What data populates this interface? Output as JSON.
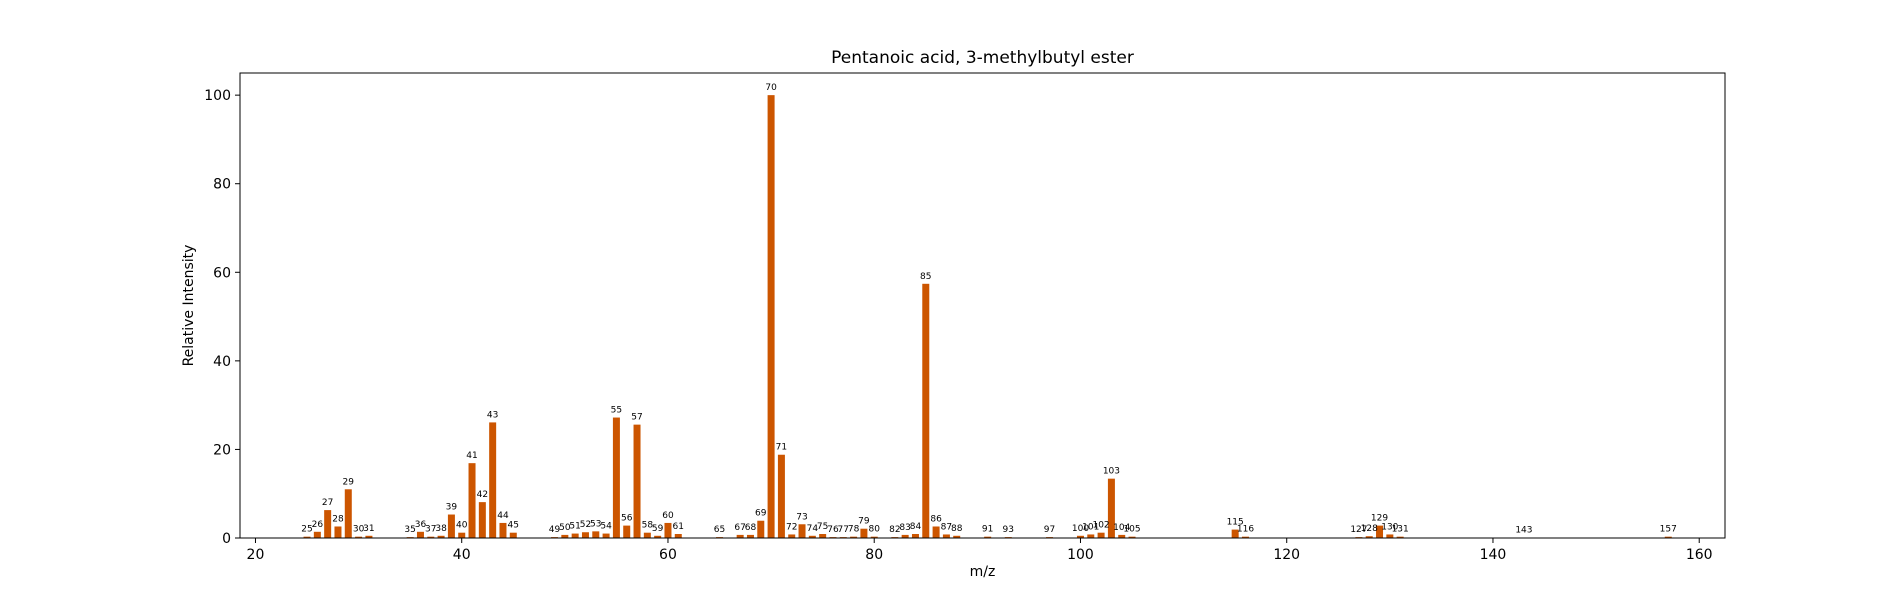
{
  "chart_data": {
    "type": "bar",
    "title": "Pentanoic acid, 3-methylbutyl ester",
    "xlabel": "m/z",
    "ylabel": "Relative Intensity",
    "xlim": [
      18.5,
      162.5
    ],
    "ylim": [
      0,
      105
    ],
    "xticks": [
      20,
      40,
      60,
      80,
      100,
      120,
      140,
      160
    ],
    "yticks": [
      0,
      20,
      40,
      60,
      80,
      100
    ],
    "bar_color": "#cc5500",
    "grid": false,
    "peaks": [
      {
        "mz": 25,
        "intensity": 0.3,
        "label": "25"
      },
      {
        "mz": 26,
        "intensity": 1.4,
        "label": "26"
      },
      {
        "mz": 27,
        "intensity": 6.3,
        "label": "27"
      },
      {
        "mz": 28,
        "intensity": 2.6,
        "label": "28"
      },
      {
        "mz": 29,
        "intensity": 11.0,
        "label": "29"
      },
      {
        "mz": 30,
        "intensity": 0.3,
        "label": "30"
      },
      {
        "mz": 31,
        "intensity": 0.5,
        "label": "31"
      },
      {
        "mz": 35,
        "intensity": 0.2,
        "label": "35"
      },
      {
        "mz": 36,
        "intensity": 1.4,
        "label": "36"
      },
      {
        "mz": 37,
        "intensity": 0.3,
        "label": "37"
      },
      {
        "mz": 38,
        "intensity": 0.5,
        "label": "38"
      },
      {
        "mz": 39,
        "intensity": 5.3,
        "label": "39"
      },
      {
        "mz": 40,
        "intensity": 1.2,
        "label": "40"
      },
      {
        "mz": 41,
        "intensity": 16.9,
        "label": "41"
      },
      {
        "mz": 42,
        "intensity": 8.1,
        "label": "42"
      },
      {
        "mz": 43,
        "intensity": 26.1,
        "label": "43"
      },
      {
        "mz": 44,
        "intensity": 3.4,
        "label": "44"
      },
      {
        "mz": 45,
        "intensity": 1.2,
        "label": "45"
      },
      {
        "mz": 49,
        "intensity": 0.2,
        "label": "49"
      },
      {
        "mz": 50,
        "intensity": 0.7,
        "label": "50"
      },
      {
        "mz": 51,
        "intensity": 1.0,
        "label": "51"
      },
      {
        "mz": 52,
        "intensity": 1.3,
        "label": "52"
      },
      {
        "mz": 53,
        "intensity": 1.5,
        "label": "53"
      },
      {
        "mz": 54,
        "intensity": 1.0,
        "label": "54"
      },
      {
        "mz": 55,
        "intensity": 27.2,
        "label": "55"
      },
      {
        "mz": 56,
        "intensity": 2.8,
        "label": "56"
      },
      {
        "mz": 57,
        "intensity": 25.6,
        "label": "57"
      },
      {
        "mz": 58,
        "intensity": 1.2,
        "label": "58"
      },
      {
        "mz": 59,
        "intensity": 0.5,
        "label": "59"
      },
      {
        "mz": 60,
        "intensity": 3.4,
        "label": "60"
      },
      {
        "mz": 61,
        "intensity": 0.9,
        "label": "61"
      },
      {
        "mz": 65,
        "intensity": 0.2,
        "label": "65"
      },
      {
        "mz": 67,
        "intensity": 0.7,
        "label": "67"
      },
      {
        "mz": 68,
        "intensity": 0.7,
        "label": "68"
      },
      {
        "mz": 69,
        "intensity": 3.9,
        "label": "69"
      },
      {
        "mz": 70,
        "intensity": 100.0,
        "label": "70"
      },
      {
        "mz": 71,
        "intensity": 18.8,
        "label": "71"
      },
      {
        "mz": 72,
        "intensity": 0.8,
        "label": "72"
      },
      {
        "mz": 73,
        "intensity": 3.1,
        "label": "73"
      },
      {
        "mz": 74,
        "intensity": 0.5,
        "label": "74"
      },
      {
        "mz": 75,
        "intensity": 0.9,
        "label": "75"
      },
      {
        "mz": 76,
        "intensity": 0.2,
        "label": "76"
      },
      {
        "mz": 77,
        "intensity": 0.2,
        "label": "77"
      },
      {
        "mz": 78,
        "intensity": 0.3,
        "label": "78"
      },
      {
        "mz": 79,
        "intensity": 2.1,
        "label": "79"
      },
      {
        "mz": 80,
        "intensity": 0.3,
        "label": "80"
      },
      {
        "mz": 82,
        "intensity": 0.2,
        "label": "82"
      },
      {
        "mz": 83,
        "intensity": 0.7,
        "label": "83"
      },
      {
        "mz": 84,
        "intensity": 0.9,
        "label": "84"
      },
      {
        "mz": 85,
        "intensity": 57.4,
        "label": "85"
      },
      {
        "mz": 86,
        "intensity": 2.6,
        "label": "86"
      },
      {
        "mz": 87,
        "intensity": 0.8,
        "label": "87"
      },
      {
        "mz": 88,
        "intensity": 0.5,
        "label": "88"
      },
      {
        "mz": 91,
        "intensity": 0.3,
        "label": "91"
      },
      {
        "mz": 93,
        "intensity": 0.2,
        "label": "93"
      },
      {
        "mz": 97,
        "intensity": 0.2,
        "label": "97"
      },
      {
        "mz": 100,
        "intensity": 0.5,
        "label": "100"
      },
      {
        "mz": 101,
        "intensity": 0.8,
        "label": "101"
      },
      {
        "mz": 102,
        "intensity": 1.2,
        "label": "102"
      },
      {
        "mz": 103,
        "intensity": 13.4,
        "label": "103"
      },
      {
        "mz": 104,
        "intensity": 0.7,
        "label": "104"
      },
      {
        "mz": 105,
        "intensity": 0.3,
        "label": "105"
      },
      {
        "mz": 115,
        "intensity": 1.9,
        "label": "115"
      },
      {
        "mz": 116,
        "intensity": 0.3,
        "label": "116"
      },
      {
        "mz": 127,
        "intensity": 0.2,
        "label": "127"
      },
      {
        "mz": 128,
        "intensity": 0.4,
        "label": "128"
      },
      {
        "mz": 129,
        "intensity": 2.8,
        "label": "129"
      },
      {
        "mz": 130,
        "intensity": 0.8,
        "label": "130"
      },
      {
        "mz": 131,
        "intensity": 0.3,
        "label": "131"
      },
      {
        "mz": 143,
        "intensity": 0.1,
        "label": "143"
      },
      {
        "mz": 157,
        "intensity": 0.3,
        "label": "157"
      }
    ]
  }
}
